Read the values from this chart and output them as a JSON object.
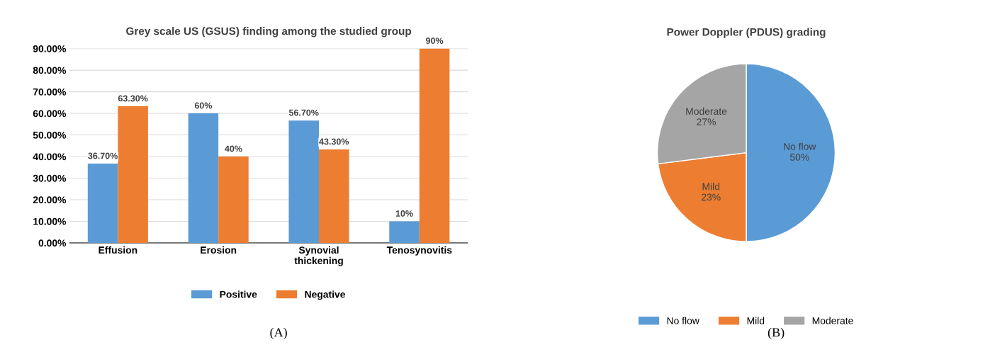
{
  "chart_data": [
    {
      "type": "bar",
      "title": "Grey scale US (GSUS) finding among the studied group",
      "categories": [
        "Effusion",
        "Erosion",
        "Synovial\nthickening",
        "Tenosynovitis"
      ],
      "series": [
        {
          "name": "Positive",
          "color": "#5b9bd5",
          "values": [
            36.7,
            60,
            56.7,
            10
          ],
          "value_labels": [
            "36.70%",
            "60%",
            "56.70%",
            "10%"
          ]
        },
        {
          "name": "Negative",
          "color": "#ed7d31",
          "values": [
            63.3,
            40,
            43.3,
            90
          ],
          "value_labels": [
            "63.30%",
            "40%",
            "43.30%",
            "90%"
          ]
        }
      ],
      "ylim": [
        0,
        90
      ],
      "yticks": [
        {
          "value": 0,
          "label": "0.00%"
        },
        {
          "value": 10,
          "label": "10.00%"
        },
        {
          "value": 20,
          "label": "20.00%"
        },
        {
          "value": 30,
          "label": "30.00%"
        },
        {
          "value": 40,
          "label": "40.00%"
        },
        {
          "value": 50,
          "label": "50.00%"
        },
        {
          "value": 60,
          "label": "60.00%"
        },
        {
          "value": 70,
          "label": "70.00%"
        },
        {
          "value": 80,
          "label": "80.00%"
        },
        {
          "value": 90,
          "label": "90.00%"
        }
      ],
      "grid": "y",
      "legend": "bottom",
      "annotations": [
        "(A)"
      ]
    },
    {
      "type": "pie",
      "title": "Power Doppler (PDUS) grading",
      "categories": [
        "No flow",
        "Mild",
        "Moderate"
      ],
      "values": [
        50,
        23,
        27
      ],
      "value_labels": [
        "50%",
        "23%",
        "27%"
      ],
      "colors": [
        "#5b9bd5",
        "#ed7d31",
        "#a5a5a5"
      ],
      "legend": "bottom",
      "annotations": [
        "(B)"
      ]
    }
  ]
}
